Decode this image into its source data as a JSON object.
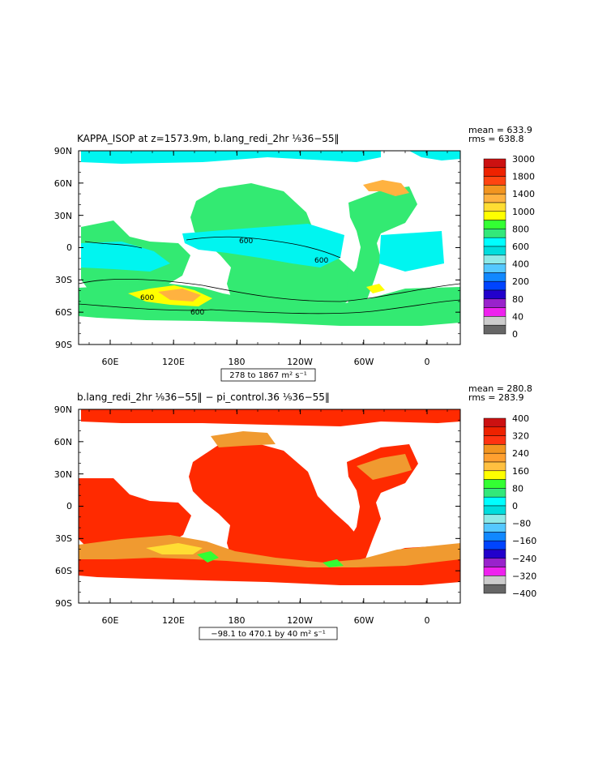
{
  "chart_data": [
    {
      "type": "heatmap",
      "title": "KAPPA_ISOP at z=1573.9m, b.lang_redi_2hr ⅑36−55‖",
      "stats": {
        "mean": "mean = 633.9",
        "rms": "rms = 638.8"
      },
      "range_label": "278 to 1867 m² s⁻¹",
      "ylim": [
        -90,
        90
      ],
      "y_ticks": [
        {
          "value": 90,
          "label": "90N"
        },
        {
          "value": 60,
          "label": "60N"
        },
        {
          "value": 30,
          "label": "30N"
        },
        {
          "value": 0,
          "label": "0"
        },
        {
          "value": -30,
          "label": "30S"
        },
        {
          "value": -60,
          "label": "60S"
        },
        {
          "value": -90,
          "label": "90S"
        }
      ],
      "x_ticks": [
        "60E",
        "120E",
        "180",
        "120W",
        "60W",
        "0"
      ],
      "contour_labels": [
        "600",
        "600",
        "600",
        "600"
      ],
      "colorbar": {
        "levels": [
          "3000",
          "1800",
          "1400",
          "1000",
          "800",
          "600",
          "400",
          "200",
          "80",
          "40",
          "0"
        ],
        "colors": [
          "#cc1111",
          "#ee2200",
          "#ff4411",
          "#f29520",
          "#ffb240",
          "#ffdd33",
          "#ffff00",
          "#33ff33",
          "#33e87a",
          "#00ffff",
          "#00dddd",
          "#8feae8",
          "#55c8ff",
          "#1188ff",
          "#0044ff",
          "#2200cc",
          "#9922cc",
          "#ee22ee",
          "#cccccc",
          "#666666"
        ]
      },
      "field": {
        "ocean": "#33ea72",
        "low": "#00f5f0",
        "high": "#ffff00",
        "mid": "#ffb240",
        "land": "#ffffff"
      }
    },
    {
      "type": "heatmap",
      "title": "b.lang_redi_2hr ⅑36−55‖ − pi_control.36 ⅑36−55‖",
      "stats": {
        "mean": "mean = 280.8",
        "rms": "rms = 283.9"
      },
      "range_label": "−98.1 to 470.1 by 40 m² s⁻¹",
      "ylim": [
        -90,
        90
      ],
      "y_ticks": [
        {
          "value": 90,
          "label": "90N"
        },
        {
          "value": 60,
          "label": "60N"
        },
        {
          "value": 30,
          "label": "30N"
        },
        {
          "value": 0,
          "label": "0"
        },
        {
          "value": -30,
          "label": "30S"
        },
        {
          "value": -60,
          "label": "60S"
        },
        {
          "value": -90,
          "label": "90S"
        }
      ],
      "x_ticks": [
        "60E",
        "120E",
        "180",
        "120W",
        "60W",
        "0"
      ],
      "colorbar": {
        "levels": [
          "400",
          "320",
          "240",
          "160",
          "80",
          "0",
          "−80",
          "−160",
          "−240",
          "−320",
          "−400"
        ],
        "colors": [
          "#cc1111",
          "#ee2200",
          "#ff3311",
          "#f29520",
          "#ffa030",
          "#ffc040",
          "#ffff00",
          "#33ff33",
          "#33e87a",
          "#00ffff",
          "#00dddd",
          "#8feae8",
          "#55c8ff",
          "#1188ff",
          "#0044ff",
          "#2200cc",
          "#9922cc",
          "#ee22ee",
          "#cccccc",
          "#666666"
        ]
      },
      "field": {
        "ocean": "#ff2a00",
        "low": "#f09a30",
        "high": "#ffdd33",
        "mid": "#33ff33",
        "land": "#ffffff"
      }
    }
  ]
}
